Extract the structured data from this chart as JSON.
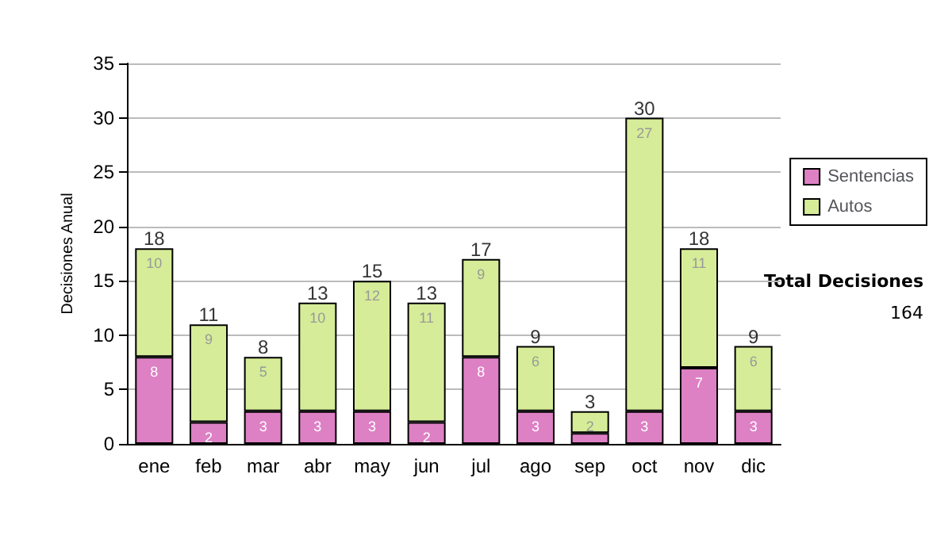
{
  "chart_data": {
    "type": "bar",
    "stacked": true,
    "ylabel": "Decisiones Anual",
    "categories": [
      "ene",
      "feb",
      "mar",
      "abr",
      "may",
      "jun",
      "jul",
      "ago",
      "sep",
      "oct",
      "nov",
      "dic"
    ],
    "series": [
      {
        "name": "Sentencias",
        "color": "#dd80c4",
        "values": [
          8,
          2,
          3,
          3,
          3,
          2,
          8,
          3,
          1,
          3,
          7,
          3
        ],
        "value_labels": [
          "8",
          "2",
          "3",
          "3",
          "3",
          "2",
          "8",
          "3",
          null,
          "3",
          "7",
          "3"
        ]
      },
      {
        "name": "Autos",
        "color": "#d6ec98",
        "values": [
          10,
          9,
          5,
          10,
          12,
          11,
          9,
          6,
          2,
          27,
          11,
          6
        ],
        "value_labels": [
          "10",
          "9",
          "5",
          "10",
          "12",
          "11",
          "9",
          "6",
          "2",
          "27",
          "11",
          "6"
        ]
      }
    ],
    "totals": [
      "18",
      "11",
      "8",
      "13",
      "15",
      "13",
      "17",
      "9",
      "3",
      "30",
      "18",
      "9"
    ],
    "ylim": [
      0,
      35
    ],
    "yticks": [
      0,
      5,
      10,
      15,
      20,
      25,
      30,
      35
    ],
    "grid": "y",
    "legend": "right",
    "annotations": [
      "Total Decisiones",
      "164"
    ]
  }
}
